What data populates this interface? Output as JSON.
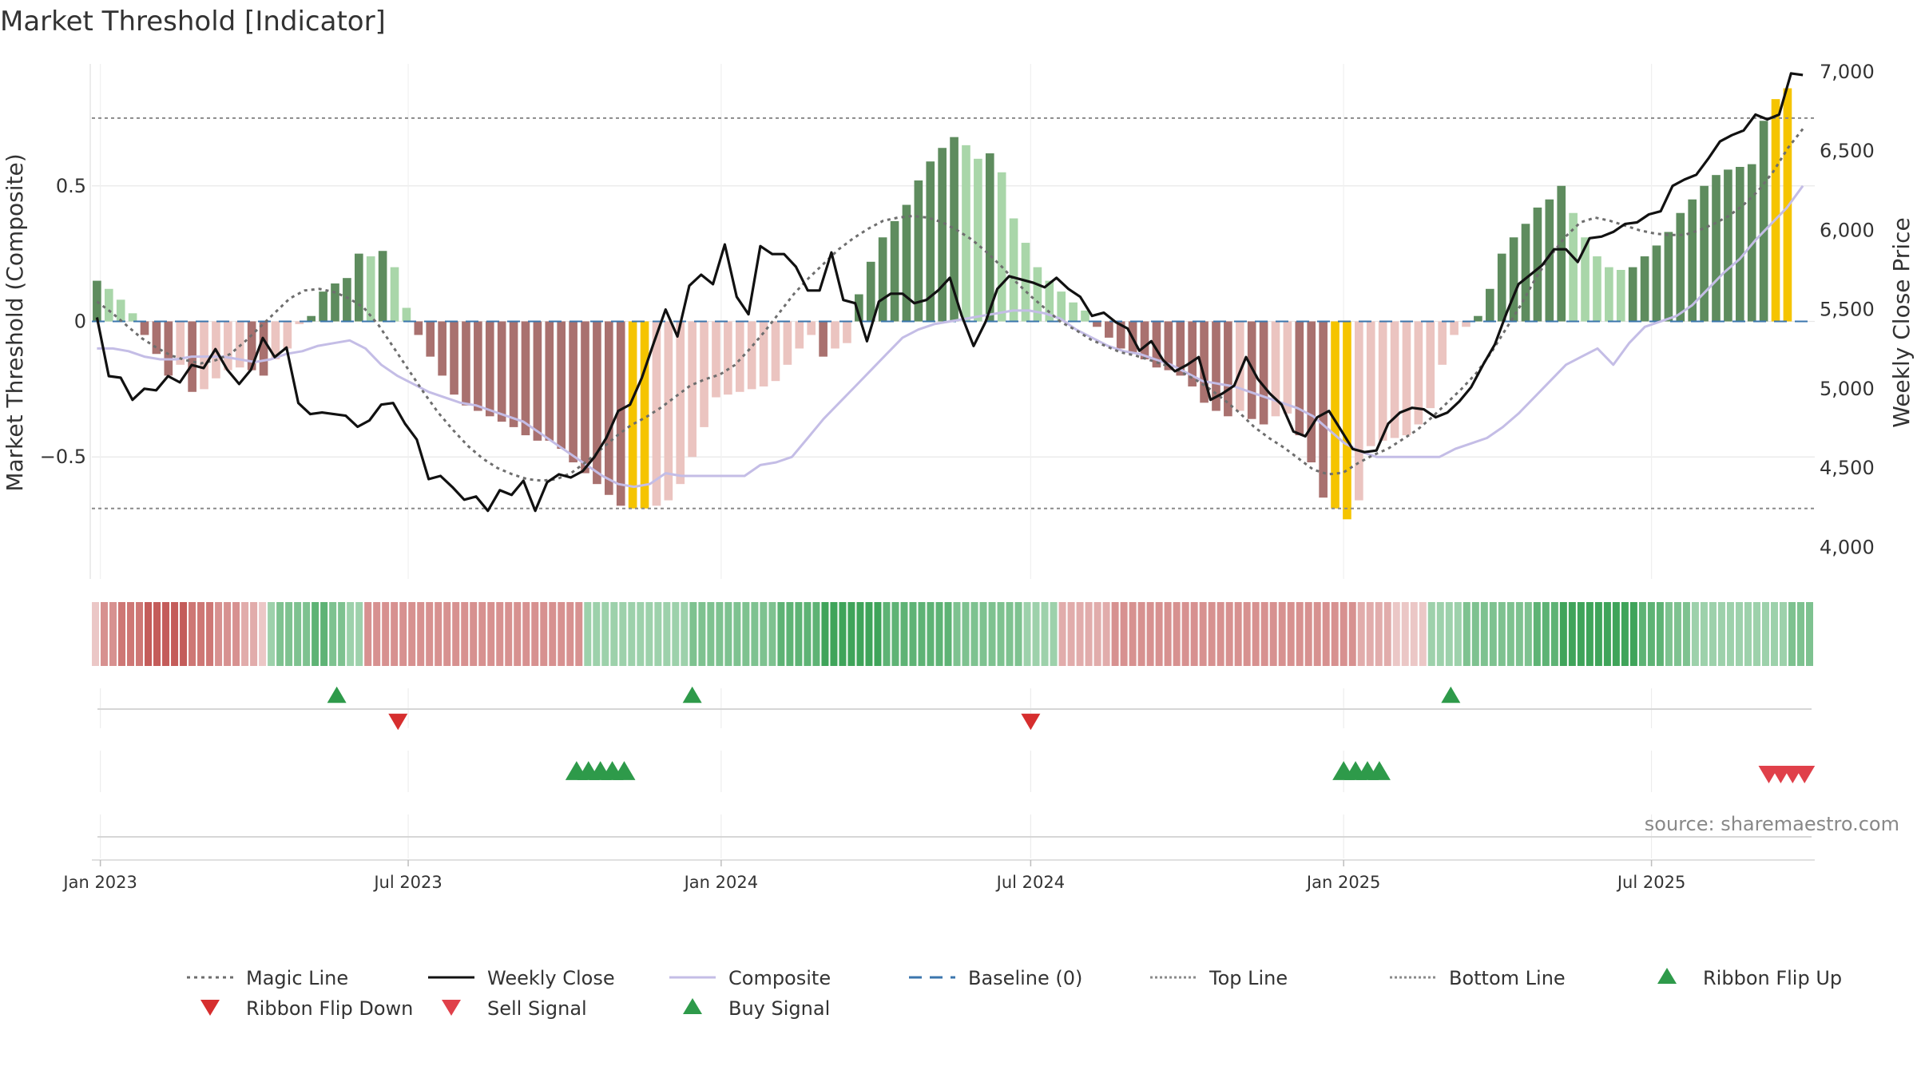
{
  "chart_data": {
    "type": "bar",
    "title": "Market Threshold [Indicator]",
    "ylabel": "Market Threshold (Composite)",
    "y2label": "Weekly Close Price",
    "ylim": [
      -0.95,
      0.95
    ],
    "y2lim": [
      3800,
      7050
    ],
    "yticks": [
      {
        "v": 0.5,
        "label": "0.5"
      },
      {
        "v": 0,
        "label": "0"
      },
      {
        "v": -0.5,
        "label": "−0.5"
      }
    ],
    "y2ticks": [
      {
        "v": 7000,
        "label": "7,000"
      },
      {
        "v": 6500,
        "label": "6,500"
      },
      {
        "v": 6000,
        "label": "6,000"
      },
      {
        "v": 5500,
        "label": "5,500"
      },
      {
        "v": 5000,
        "label": "5,000"
      },
      {
        "v": 4500,
        "label": "4,500"
      },
      {
        "v": 4000,
        "label": "4,000"
      }
    ],
    "x_start": "2022-12-27",
    "x_end": "2025-10-05",
    "xticks": [
      {
        "date": "2023-01-01",
        "label": "Jan 2023"
      },
      {
        "date": "2023-07-01",
        "label": "Jul 2023"
      },
      {
        "date": "2024-01-01",
        "label": "Jan 2024"
      },
      {
        "date": "2024-07-01",
        "label": "Jul 2024"
      },
      {
        "date": "2025-01-01",
        "label": "Jan 2025"
      },
      {
        "date": "2025-07-01",
        "label": "Jul 2025"
      }
    ],
    "top_line": 0.75,
    "bottom_line": -0.69,
    "weeks_start": "2022-12-30",
    "composite_bars": [
      0.15,
      0.12,
      0.08,
      0.03,
      -0.05,
      -0.12,
      -0.2,
      -0.16,
      -0.26,
      -0.25,
      -0.21,
      -0.18,
      -0.17,
      -0.18,
      -0.2,
      -0.14,
      -0.1,
      -0.01,
      0.02,
      0.11,
      0.14,
      0.16,
      0.25,
      0.24,
      0.26,
      0.2,
      0.05,
      -0.05,
      -0.13,
      -0.2,
      -0.27,
      -0.31,
      -0.33,
      -0.35,
      -0.37,
      -0.39,
      -0.42,
      -0.44,
      -0.44,
      -0.47,
      -0.52,
      -0.56,
      -0.6,
      -0.64,
      -0.68,
      -0.69,
      -0.69,
      -0.68,
      -0.66,
      -0.6,
      -0.5,
      -0.39,
      -0.28,
      -0.27,
      -0.26,
      -0.25,
      -0.24,
      -0.22,
      -0.16,
      -0.1,
      -0.05,
      -0.13,
      -0.1,
      -0.08,
      0.1,
      0.22,
      0.31,
      0.37,
      0.43,
      0.52,
      0.59,
      0.64,
      0.68,
      0.65,
      0.6,
      0.62,
      0.55,
      0.38,
      0.29,
      0.2,
      0.15,
      0.11,
      0.07,
      0.04,
      -0.02,
      -0.06,
      -0.1,
      -0.12,
      -0.14,
      -0.17,
      -0.18,
      -0.2,
      -0.24,
      -0.3,
      -0.33,
      -0.35,
      -0.33,
      -0.36,
      -0.38,
      -0.35,
      -0.34,
      -0.42,
      -0.52,
      -0.65,
      -0.69,
      -0.73,
      -0.66,
      -0.46,
      -0.44,
      -0.43,
      -0.42,
      -0.38,
      -0.32,
      -0.16,
      -0.05,
      -0.02,
      0.02,
      0.12,
      0.25,
      0.31,
      0.36,
      0.42,
      0.45,
      0.5,
      0.4,
      0.31,
      0.24,
      0.2,
      0.19,
      0.2,
      0.24,
      0.28,
      0.33,
      0.4,
      0.45,
      0.5,
      0.54,
      0.56,
      0.57,
      0.58,
      0.74,
      0.82,
      0.86
    ],
    "close": [
      5450,
      5080,
      5070,
      4930,
      5000,
      4990,
      5080,
      5040,
      5150,
      5130,
      5250,
      5120,
      5030,
      5120,
      5320,
      5200,
      5260,
      4910,
      4840,
      4850,
      4840,
      4830,
      4760,
      4800,
      4900,
      4910,
      4780,
      4680,
      4430,
      4450,
      4380,
      4300,
      4320,
      4230,
      4360,
      4330,
      4420,
      4230,
      4410,
      4460,
      4440,
      4480,
      4570,
      4690,
      4860,
      4900,
      5070,
      5290,
      5500,
      5330,
      5650,
      5720,
      5660,
      5910,
      5580,
      5470,
      5900,
      5850,
      5850,
      5770,
      5620,
      5620,
      5860,
      5560,
      5540,
      5300,
      5550,
      5600,
      5600,
      5540,
      5560,
      5620,
      5700,
      5460,
      5270,
      5420,
      5630,
      5710,
      5690,
      5670,
      5640,
      5700,
      5630,
      5580,
      5460,
      5480,
      5420,
      5380,
      5240,
      5300,
      5180,
      5110,
      5150,
      5200,
      4930,
      4970,
      5020,
      5200,
      5060,
      4970,
      4900,
      4730,
      4700,
      4820,
      4860,
      4740,
      4620,
      4600,
      4610,
      4780,
      4850,
      4880,
      4870,
      4820,
      4850,
      4920,
      5010,
      5150,
      5280,
      5480,
      5660,
      5720,
      5780,
      5880,
      5880,
      5800,
      5950,
      5960,
      5990,
      6040,
      6050,
      6100,
      6120,
      6280,
      6320,
      6350,
      6450,
      6560,
      6600,
      6630,
      6730,
      6700,
      6730,
      6990,
      6980
    ],
    "magic_line": [
      5550,
      5480,
      5400,
      5320,
      5260,
      5210,
      5180,
      5160,
      5180,
      5220,
      5300,
      5390,
      5480,
      5570,
      5620,
      5630,
      5610,
      5570,
      5510,
      5400,
      5260,
      5120,
      4980,
      4850,
      4740,
      4640,
      4560,
      4500,
      4460,
      4430,
      4420,
      4430,
      4470,
      4540,
      4620,
      4700,
      4770,
      4820,
      4880,
      4950,
      5020,
      5060,
      5090,
      5150,
      5250,
      5360,
      5480,
      5600,
      5700,
      5790,
      5880,
      5950,
      6010,
      6060,
      6080,
      6090,
      6080,
      6050,
      6000,
      5940,
      5860,
      5770,
      5670,
      5580,
      5500,
      5420,
      5370,
      5310,
      5270,
      5230,
      5210,
      5180,
      5150,
      5110,
      5060,
      5000,
      4930,
      4850,
      4760,
      4690,
      4630,
      4560,
      4490,
      4460,
      4470,
      4530,
      4580,
      4620,
      4680,
      4740,
      4820,
      4910,
      5000,
      5100,
      5230,
      5380,
      5530,
      5700,
      5840,
      5960,
      6050,
      6080,
      6060,
      6030,
      6000,
      5980,
      5970,
      5970,
      6000,
      6040,
      6090,
      6160,
      6250,
      6370,
      6520,
      6640
    ],
    "composite_line": [
      -0.1,
      -0.1,
      -0.11,
      -0.13,
      -0.14,
      -0.14,
      -0.13,
      -0.13,
      -0.13,
      -0.14,
      -0.15,
      -0.14,
      -0.12,
      -0.11,
      -0.09,
      -0.08,
      -0.07,
      -0.1,
      -0.16,
      -0.2,
      -0.23,
      -0.26,
      -0.28,
      -0.3,
      -0.31,
      -0.33,
      -0.35,
      -0.37,
      -0.41,
      -0.45,
      -0.49,
      -0.53,
      -0.57,
      -0.6,
      -0.61,
      -0.6,
      -0.56,
      -0.57,
      -0.57,
      -0.57,
      -0.57,
      -0.57,
      -0.53,
      -0.52,
      -0.5,
      -0.43,
      -0.36,
      -0.3,
      -0.24,
      -0.18,
      -0.12,
      -0.06,
      -0.03,
      -0.01,
      0.0,
      0.01,
      0.02,
      0.03,
      0.04,
      0.04,
      0.03,
      0.01,
      -0.03,
      -0.06,
      -0.09,
      -0.11,
      -0.12,
      -0.14,
      -0.16,
      -0.19,
      -0.22,
      -0.23,
      -0.24,
      -0.26,
      -0.28,
      -0.3,
      -0.32,
      -0.35,
      -0.4,
      -0.45,
      -0.48,
      -0.5,
      -0.5,
      -0.5,
      -0.5,
      -0.5,
      -0.47,
      -0.45,
      -0.43,
      -0.39,
      -0.34,
      -0.28,
      -0.22,
      -0.16,
      -0.13,
      -0.1,
      -0.16,
      -0.08,
      -0.02,
      0.0,
      0.02,
      0.06,
      0.12,
      0.18,
      0.23,
      0.3,
      0.36,
      0.42,
      0.5
    ],
    "ribbon_levels": [
      -1,
      -3,
      -3,
      -4,
      -4,
      -4,
      -5,
      -5,
      -5,
      -5,
      -5,
      -4,
      -4,
      -4,
      -3,
      -3,
      -3,
      -2,
      -2,
      -1,
      2,
      3,
      3,
      3,
      3,
      4,
      4,
      3,
      3,
      2,
      2,
      -3,
      -3,
      -3,
      -3,
      -3,
      -3,
      -3,
      -3,
      -3,
      -3,
      -3,
      -3,
      -3,
      -3,
      -3,
      -3,
      -3,
      -3,
      -3,
      -3,
      -3,
      -3,
      -3,
      -3,
      -3,
      2,
      2,
      2,
      2,
      2,
      2,
      2,
      2,
      2,
      2,
      2,
      2,
      3,
      3,
      3,
      3,
      3,
      3,
      3,
      3,
      3,
      3,
      4,
      4,
      4,
      4,
      4,
      5,
      5,
      5,
      5,
      5,
      5,
      5,
      4,
      4,
      4,
      4,
      4,
      4,
      4,
      4,
      3,
      3,
      3,
      3,
      3,
      3,
      3,
      3,
      2,
      2,
      2,
      2,
      -2,
      -2,
      -2,
      -2,
      -2,
      -2,
      -3,
      -3,
      -3,
      -3,
      -3,
      -3,
      -3,
      -3,
      -3,
      -3,
      -3,
      -3,
      -3,
      -3,
      -3,
      -3,
      -3,
      -3,
      -3,
      -3,
      -3,
      -3,
      -3,
      -3,
      -3,
      -3,
      -3,
      -3,
      -2,
      -2,
      -2,
      -2,
      -1,
      -1,
      -1,
      -1,
      2,
      2,
      2,
      2,
      3,
      3,
      3,
      3,
      3,
      3,
      3,
      3,
      4,
      4,
      4,
      5,
      5,
      5,
      5,
      5,
      5,
      5,
      5,
      5,
      4,
      4,
      4,
      3,
      3,
      3,
      2,
      2,
      2,
      2,
      2,
      2,
      2,
      2,
      2,
      2,
      2,
      3,
      3,
      3
    ],
    "ribbon_flip_up": [
      "2023-05-20",
      "2023-12-15",
      "2025-03-05"
    ],
    "ribbon_flip_down": [
      "2023-06-25",
      "2024-07-01"
    ],
    "buy_signal": [
      "2023-10-08",
      "2023-10-15",
      "2023-10-22",
      "2023-10-29",
      "2023-11-05",
      "2025-01-01",
      "2025-01-08",
      "2025-01-15",
      "2025-01-22"
    ],
    "sell_signal": [
      "2025-09-08",
      "2025-09-15",
      "2025-09-22",
      "2025-09-29"
    ]
  },
  "source": "source: sharemaestro.com",
  "legend": [
    {
      "label": "Magic Line",
      "kind": "line",
      "color": "#6e6e6e",
      "dash": "4,5"
    },
    {
      "label": "Weekly Close",
      "kind": "line",
      "color": "#111111",
      "dash": ""
    },
    {
      "label": "Composite",
      "kind": "line",
      "color": "#c4bde6",
      "dash": ""
    },
    {
      "label": "Baseline (0)",
      "kind": "line",
      "color": "#3b76ad",
      "dash": "16,10"
    },
    {
      "label": "Top Line",
      "kind": "line",
      "color": "#8a8a8a",
      "dash": "3,3"
    },
    {
      "label": "Bottom Line",
      "kind": "line",
      "color": "#8a8a8a",
      "dash": "3,3"
    },
    {
      "label": "Ribbon Flip Up",
      "kind": "tri-up",
      "color": "#2e9a4a"
    },
    {
      "label": "Ribbon Flip Down",
      "kind": "tri-down",
      "color": "#d62e2e"
    },
    {
      "label": "Sell Signal",
      "kind": "tri-down",
      "color": "#e0404a"
    },
    {
      "label": "Buy Signal",
      "kind": "tri-up",
      "color": "#2e9a4a"
    }
  ],
  "colors": {
    "bar_pos_strong": "#5e8c5e",
    "bar_pos_light": "#a9d6a9",
    "bar_neg_strong": "#a9716f",
    "bar_neg_light": "#ebc4c0",
    "bar_extreme": "#f5c400",
    "ribbon_pos": "#3fa45a",
    "ribbon_neg": "#c45c5a",
    "flip_up": "#2e9a4a",
    "flip_down": "#d62e2e",
    "sell": "#e0404a",
    "buy": "#2e9a4a"
  }
}
